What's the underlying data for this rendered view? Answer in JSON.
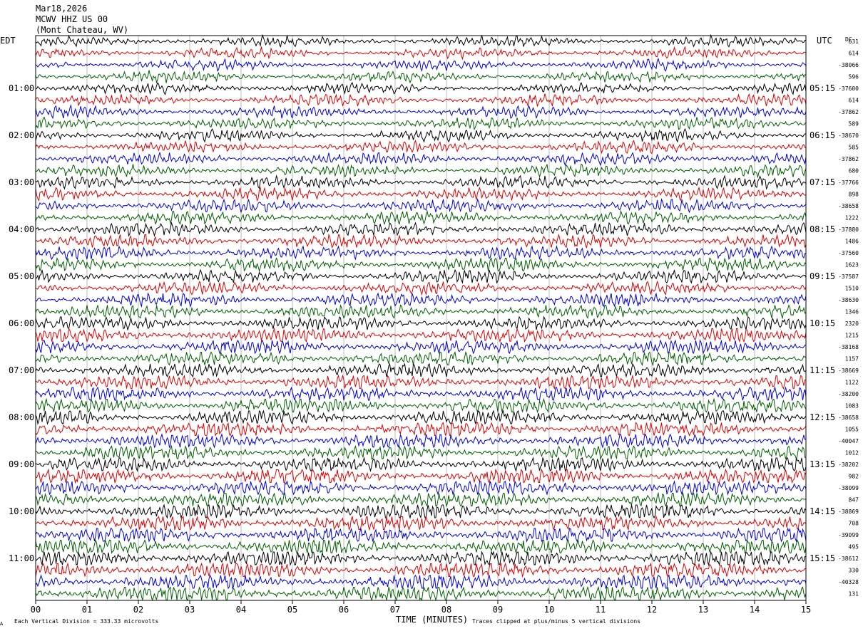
{
  "header": {
    "date": "Mar18,2026",
    "station": "MCWV HHZ US 00",
    "location": "(Mont Chateau, WV)"
  },
  "left_axis_label": "EDT",
  "right_axis_label": "UTC",
  "dc_label": "DC",
  "left_hour_labels": [
    "01:00",
    "02:00",
    "03:00",
    "04:00",
    "05:00",
    "06:00",
    "07:00",
    "08:00",
    "09:00",
    "10:00",
    "11:00"
  ],
  "right_hour_labels": [
    "05:15",
    "06:15",
    "07:15",
    "08:15",
    "09:15",
    "10:15",
    "11:15",
    "12:15",
    "13:15",
    "14:15",
    "15:15"
  ],
  "dc_values": [
    "631",
    "614",
    "-38066",
    "596",
    "-37600",
    "614",
    "-37862",
    "589",
    "-38670",
    "585",
    "-37862",
    "680",
    "-37766",
    "898",
    "-38658",
    "1222",
    "-37880",
    "1486",
    "-37560",
    "1623",
    "-37587",
    "1510",
    "-38630",
    "1346",
    "2320",
    "1215",
    "-38168",
    "1157",
    "-38669",
    "1122",
    "-38200",
    "1083",
    "-38658",
    "1055",
    "-40047",
    "1012",
    "-38202",
    "982",
    "-38099",
    "847",
    "-38869",
    "708",
    "-39099",
    "495",
    "-38612",
    "330",
    "-40328",
    "131"
  ],
  "x_tick_labels": [
    "00",
    "01",
    "02",
    "03",
    "04",
    "05",
    "06",
    "07",
    "08",
    "09",
    "10",
    "11",
    "12",
    "13",
    "14",
    "15"
  ],
  "x_axis_title": "TIME (MINUTES)",
  "footer_left": "Each Vertical Division =  333.33 microvolts",
  "footer_right": "Traces clipped at plus/minus 5 vertical divisions",
  "corner_mark": "A",
  "trace_colors": [
    "#000000",
    "#e00000",
    "#0000e0",
    "#006000"
  ],
  "chart_data": {
    "type": "line",
    "plot_kind": "helicorder seismogram",
    "xlim": [
      0,
      15
    ],
    "xlabel": "TIME (MINUTES)",
    "row_count": 48,
    "row_duration_minutes": 15,
    "rows_per_hour": 4,
    "color_cycle": [
      "black",
      "red",
      "blue",
      "green"
    ],
    "grid": "vertical lines each minute",
    "vertical_division_microvolts": 333.33,
    "clip_divisions": 5
  }
}
